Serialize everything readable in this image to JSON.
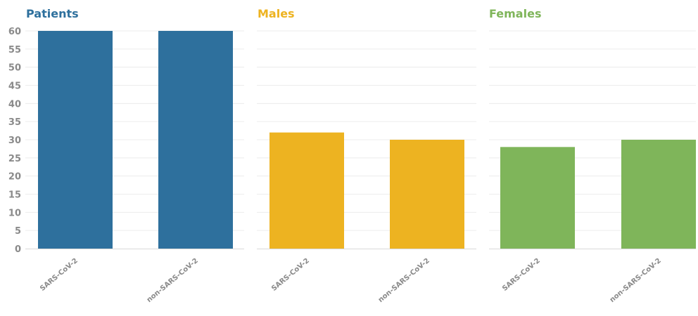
{
  "chart_data": [
    {
      "type": "bar",
      "title": "Patients",
      "categories": [
        "SARS-CoV-2",
        "non-SARS-CoV-2"
      ],
      "values": [
        60,
        60
      ],
      "color": "#2e709d",
      "ylim": [
        0,
        60
      ],
      "yticks": [
        0,
        5,
        10,
        15,
        20,
        25,
        30,
        35,
        40,
        45,
        50,
        55,
        60
      ],
      "grid": true
    },
    {
      "type": "bar",
      "title": "Males",
      "categories": [
        "SARS-CoV-2",
        "non-SARS-CoV-2"
      ],
      "values": [
        32,
        30
      ],
      "color": "#edb321",
      "ylim": [
        0,
        60
      ],
      "grid": true
    },
    {
      "type": "bar",
      "title": "Females",
      "categories": [
        "SARS-CoV-2",
        "non-SARS-CoV-2"
      ],
      "values": [
        28,
        30
      ],
      "color": "#7fb55a",
      "ylim": [
        0,
        60
      ],
      "grid": true
    }
  ]
}
